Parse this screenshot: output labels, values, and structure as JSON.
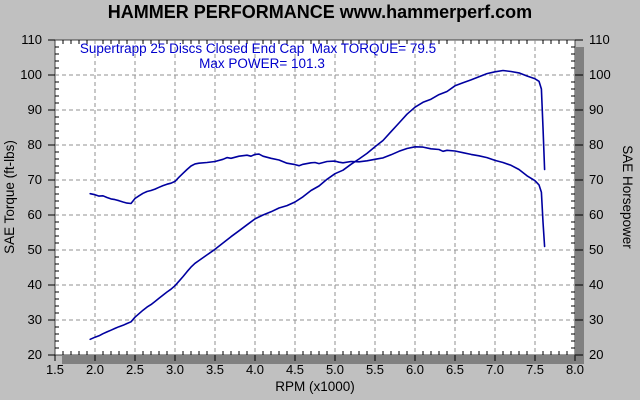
{
  "header": {
    "title": "HAMMER PERFORMANCE www.hammerperf.com"
  },
  "annotation": {
    "line1": "Supertrapp 25 Discs Closed End Cap  Max TORQUE= 79.5",
    "line2": "Max POWER= 101.3"
  },
  "colors": {
    "background": "#C0C0C0",
    "plot_bg": "#FFFFFF",
    "border": "#404040",
    "shadow": "#808080",
    "grid": "#909090",
    "tick": "#000000",
    "text": "#000000",
    "annotation_text": "#0000CC",
    "curve": "#0000A0"
  },
  "chart_data": {
    "type": "line",
    "title": "HAMMER PERFORMANCE www.hammerperf.com",
    "xlabel": "RPM (x1000)",
    "ylabel_left": "SAE Torque (ft-lbs)",
    "ylabel_right": "SAE Horsepower",
    "xlim": [
      1.5,
      8.0
    ],
    "ylim": [
      20,
      110
    ],
    "xtick_step": 0.5,
    "ytick_step": 10,
    "xminor_step": 0.1,
    "yminor_step": 2,
    "grid": "dashed",
    "legend_position": "none",
    "max_torque": 79.5,
    "max_power": 101.3,
    "series": [
      {
        "name": "SAE Torque (ft-lbs)",
        "color": "#0000A0",
        "points": [
          [
            1.94,
            66.1
          ],
          [
            2.0,
            65.8
          ],
          [
            2.05,
            65.4
          ],
          [
            2.1,
            65.5
          ],
          [
            2.15,
            65.0
          ],
          [
            2.2,
            64.6
          ],
          [
            2.25,
            64.4
          ],
          [
            2.3,
            64.1
          ],
          [
            2.35,
            63.7
          ],
          [
            2.4,
            63.4
          ],
          [
            2.45,
            63.3
          ],
          [
            2.5,
            64.7
          ],
          [
            2.55,
            65.5
          ],
          [
            2.6,
            66.2
          ],
          [
            2.65,
            66.7
          ],
          [
            2.7,
            67.0
          ],
          [
            2.75,
            67.4
          ],
          [
            2.8,
            67.9
          ],
          [
            2.85,
            68.4
          ],
          [
            2.9,
            68.8
          ],
          [
            2.95,
            69.1
          ],
          [
            3.0,
            69.6
          ],
          [
            3.05,
            70.8
          ],
          [
            3.1,
            71.9
          ],
          [
            3.15,
            73.0
          ],
          [
            3.2,
            74.0
          ],
          [
            3.25,
            74.6
          ],
          [
            3.3,
            74.8
          ],
          [
            3.4,
            75.0
          ],
          [
            3.5,
            75.3
          ],
          [
            3.6,
            75.9
          ],
          [
            3.65,
            76.4
          ],
          [
            3.7,
            76.2
          ],
          [
            3.8,
            76.8
          ],
          [
            3.9,
            77.1
          ],
          [
            3.95,
            76.8
          ],
          [
            4.0,
            77.3
          ],
          [
            4.05,
            77.4
          ],
          [
            4.1,
            76.8
          ],
          [
            4.2,
            76.2
          ],
          [
            4.3,
            75.7
          ],
          [
            4.4,
            74.8
          ],
          [
            4.5,
            74.4
          ],
          [
            4.55,
            74.1
          ],
          [
            4.6,
            74.5
          ],
          [
            4.7,
            74.9
          ],
          [
            4.75,
            75.0
          ],
          [
            4.8,
            74.7
          ],
          [
            4.9,
            75.3
          ],
          [
            5.0,
            75.4
          ],
          [
            5.05,
            75.1
          ],
          [
            5.1,
            74.9
          ],
          [
            5.2,
            75.3
          ],
          [
            5.3,
            75.2
          ],
          [
            5.4,
            75.5
          ],
          [
            5.5,
            75.9
          ],
          [
            5.6,
            76.3
          ],
          [
            5.7,
            77.2
          ],
          [
            5.8,
            78.2
          ],
          [
            5.9,
            79.0
          ],
          [
            6.0,
            79.5
          ],
          [
            6.1,
            79.4
          ],
          [
            6.2,
            78.9
          ],
          [
            6.3,
            78.7
          ],
          [
            6.35,
            78.2
          ],
          [
            6.4,
            78.5
          ],
          [
            6.5,
            78.3
          ],
          [
            6.6,
            77.8
          ],
          [
            6.7,
            77.3
          ],
          [
            6.8,
            76.9
          ],
          [
            6.9,
            76.4
          ],
          [
            7.0,
            75.6
          ],
          [
            7.1,
            75.0
          ],
          [
            7.2,
            74.2
          ],
          [
            7.3,
            73.0
          ],
          [
            7.4,
            71.2
          ],
          [
            7.5,
            69.8
          ],
          [
            7.55,
            68.6
          ],
          [
            7.58,
            66.5
          ],
          [
            7.6,
            58.0
          ],
          [
            7.62,
            51.0
          ]
        ]
      },
      {
        "name": "SAE Horsepower",
        "color": "#0000A0",
        "points": [
          [
            1.94,
            24.5
          ],
          [
            2.0,
            25.1
          ],
          [
            2.05,
            25.5
          ],
          [
            2.1,
            26.1
          ],
          [
            2.15,
            26.6
          ],
          [
            2.2,
            27.1
          ],
          [
            2.25,
            27.6
          ],
          [
            2.3,
            28.1
          ],
          [
            2.35,
            28.5
          ],
          [
            2.4,
            29.0
          ],
          [
            2.45,
            29.5
          ],
          [
            2.5,
            30.8
          ],
          [
            2.55,
            31.8
          ],
          [
            2.6,
            32.8
          ],
          [
            2.65,
            33.7
          ],
          [
            2.7,
            34.4
          ],
          [
            2.75,
            35.3
          ],
          [
            2.8,
            36.2
          ],
          [
            2.85,
            37.1
          ],
          [
            2.9,
            38.0
          ],
          [
            2.95,
            38.8
          ],
          [
            3.0,
            39.8
          ],
          [
            3.05,
            41.1
          ],
          [
            3.1,
            42.4
          ],
          [
            3.15,
            43.8
          ],
          [
            3.2,
            45.1
          ],
          [
            3.25,
            46.2
          ],
          [
            3.3,
            47.0
          ],
          [
            3.4,
            48.6
          ],
          [
            3.5,
            50.2
          ],
          [
            3.6,
            52.0
          ],
          [
            3.7,
            53.8
          ],
          [
            3.8,
            55.5
          ],
          [
            3.9,
            57.2
          ],
          [
            4.0,
            58.9
          ],
          [
            4.1,
            60.0
          ],
          [
            4.2,
            60.9
          ],
          [
            4.3,
            62.0
          ],
          [
            4.4,
            62.7
          ],
          [
            4.5,
            63.7
          ],
          [
            4.6,
            65.2
          ],
          [
            4.7,
            67.0
          ],
          [
            4.8,
            68.3
          ],
          [
            4.9,
            70.2
          ],
          [
            5.0,
            71.8
          ],
          [
            5.1,
            72.8
          ],
          [
            5.2,
            74.5
          ],
          [
            5.3,
            76.0
          ],
          [
            5.4,
            77.6
          ],
          [
            5.5,
            79.5
          ],
          [
            5.6,
            81.3
          ],
          [
            5.7,
            83.8
          ],
          [
            5.8,
            86.3
          ],
          [
            5.9,
            88.8
          ],
          [
            6.0,
            90.8
          ],
          [
            6.1,
            92.2
          ],
          [
            6.2,
            93.1
          ],
          [
            6.3,
            94.4
          ],
          [
            6.4,
            95.3
          ],
          [
            6.5,
            96.9
          ],
          [
            6.6,
            97.8
          ],
          [
            6.7,
            98.6
          ],
          [
            6.8,
            99.5
          ],
          [
            6.9,
            100.4
          ],
          [
            7.0,
            100.9
          ],
          [
            7.1,
            101.3
          ],
          [
            7.2,
            101.0
          ],
          [
            7.3,
            100.6
          ],
          [
            7.4,
            99.7
          ],
          [
            7.5,
            98.9
          ],
          [
            7.55,
            98.2
          ],
          [
            7.58,
            96.0
          ],
          [
            7.6,
            85.0
          ],
          [
            7.62,
            73.0
          ]
        ]
      }
    ]
  }
}
